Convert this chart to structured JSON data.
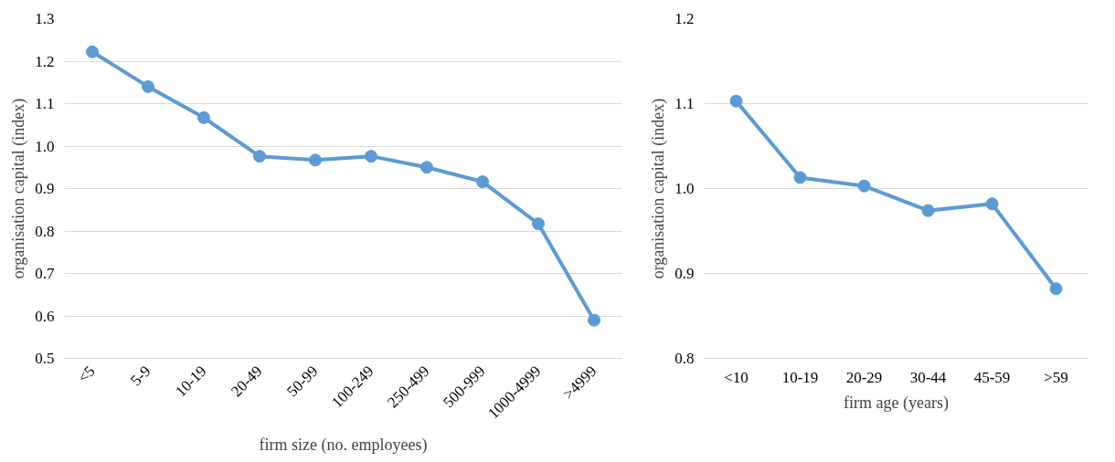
{
  "chart_data": [
    {
      "type": "line",
      "xlabel": "firm size (no. employees)",
      "ylabel": "organisation capital (index)",
      "categories": [
        "<5",
        "5-9",
        "10-19",
        "20-49",
        "50-99",
        "100-249",
        "250-499",
        "500-999",
        "1000-4999",
        ">4999"
      ],
      "series": [
        {
          "color": "#5b9bd5",
          "values": [
            1.222,
            1.14,
            1.067,
            0.976,
            0.967,
            0.976,
            0.95,
            0.916,
            0.817,
            0.59
          ]
        }
      ],
      "ylim": [
        0.5,
        1.3
      ],
      "yticks": [
        {
          "value": 0.5,
          "label": "0.5"
        },
        {
          "value": 0.6,
          "label": "0.6"
        },
        {
          "value": 0.7,
          "label": "0.7"
        },
        {
          "value": 0.8,
          "label": "0.8"
        },
        {
          "value": 0.9,
          "label": "0.9"
        },
        {
          "value": 1.0,
          "label": "1.0"
        },
        {
          "value": 1.1,
          "label": "1.1"
        },
        {
          "value": 1.2,
          "label": "1.2"
        },
        {
          "value": 1.3,
          "label": "1.3"
        }
      ],
      "grid": "y",
      "marker": "circle",
      "line_style": "solid"
    },
    {
      "type": "line",
      "xlabel": "firm age (years)",
      "ylabel": "organisation capital (index)",
      "categories": [
        "<10",
        "10-19",
        "20-29",
        "30-44",
        "45-59",
        ">59"
      ],
      "series": [
        {
          "color": "#5b9bd5",
          "values": [
            1.103,
            1.013,
            1.003,
            0.974,
            0.982,
            0.882
          ]
        }
      ],
      "ylim": [
        0.8,
        1.2
      ],
      "yticks": [
        {
          "value": 0.8,
          "label": "0.8"
        },
        {
          "value": 0.9,
          "label": "0.9"
        },
        {
          "value": 1.0,
          "label": "1.0"
        },
        {
          "value": 1.1,
          "label": "1.1"
        },
        {
          "value": 1.2,
          "label": "1.2"
        }
      ],
      "grid": "y",
      "marker": "circle",
      "line_style": "solid"
    }
  ]
}
